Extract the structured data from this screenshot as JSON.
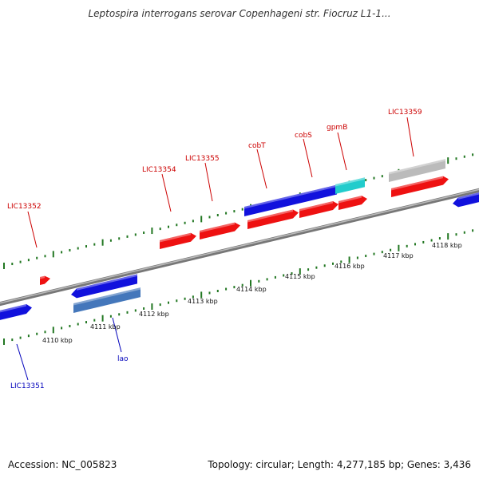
{
  "title": "Leptospira interrogans serovar Copenhageni str. Fiocruz L1-1...",
  "footer": {
    "accession": "Accession: NC_005823",
    "summary": "Topology: circular; Length: 4,277,185 bp; Genes: 3,436"
  },
  "colors": {
    "forward_gene": "#ee1111",
    "reverse_gene": "#1111dd",
    "label_red": "#cc0000",
    "label_blue": "#0000bb",
    "ruler": "#227722",
    "backbone": "#888888"
  },
  "ruler_labels": [
    {
      "text": "4110 kbp"
    },
    {
      "text": "4111 kbp"
    },
    {
      "text": "4112 kbp"
    },
    {
      "text": "4113 kbp"
    },
    {
      "text": "4114 kbp"
    },
    {
      "text": "4115 kbp"
    },
    {
      "text": "4116 kbp"
    },
    {
      "text": "4117 kbp"
    },
    {
      "text": "4118 kbp"
    }
  ],
  "gene_labels": [
    {
      "text": "LIC13352",
      "strand": "forward"
    },
    {
      "text": "LIC13354",
      "strand": "forward"
    },
    {
      "text": "LIC13355",
      "strand": "forward"
    },
    {
      "text": "cobT",
      "strand": "forward"
    },
    {
      "text": "cobS",
      "strand": "forward"
    },
    {
      "text": "gpmB",
      "strand": "forward"
    },
    {
      "text": "LIC13359",
      "strand": "forward"
    },
    {
      "text": "LIC13351",
      "strand": "reverse"
    },
    {
      "text": "lao",
      "strand": "reverse"
    }
  ]
}
